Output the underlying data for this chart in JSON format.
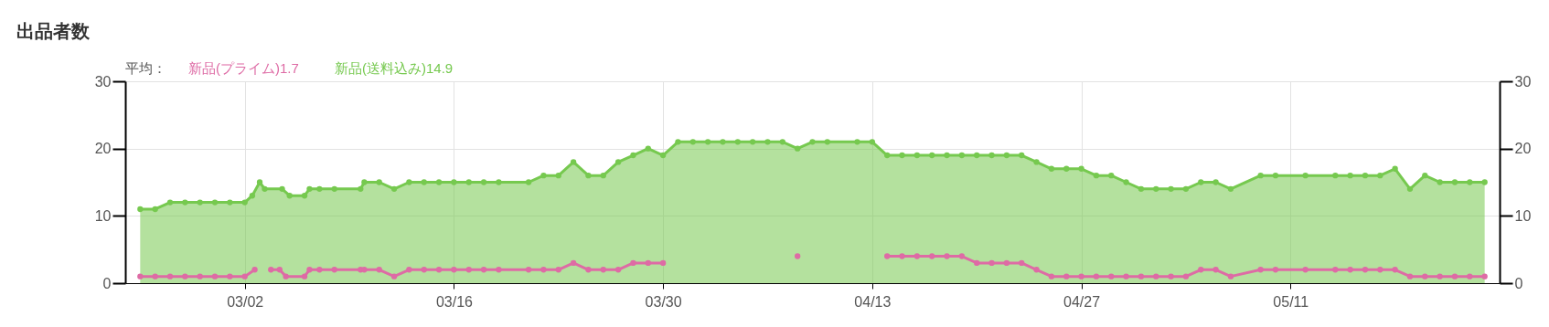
{
  "chart_data": {
    "type": "line",
    "title": "出品者数",
    "legend_title": "平均：",
    "legend": "top",
    "grid": true,
    "marker": "circle",
    "xlim": [
      "--02-22",
      "--05-25"
    ],
    "xticks": [
      {
        "value": "--03-02",
        "label": "03/02"
      },
      {
        "value": "--03-16",
        "label": "03/16"
      },
      {
        "value": "--03-30",
        "label": "03/30"
      },
      {
        "value": "--04-13",
        "label": "04/13"
      },
      {
        "value": "--04-27",
        "label": "04/27"
      },
      {
        "value": "--05-11",
        "label": "05/11"
      }
    ],
    "ylim": [
      0,
      30
    ],
    "yticks": [
      0,
      10,
      20,
      30
    ],
    "y2lim": [
      0,
      30
    ],
    "y2ticks": [
      0,
      10,
      20,
      30
    ],
    "series": [
      {
        "name": "新品(プライム)1.7",
        "type": "line",
        "color": "#de6ba5",
        "x": [
          "--02-23",
          "--02-24",
          "--02-25",
          "--02-26",
          "--02-27",
          "--02-28",
          "--03-01",
          "--03-02",
          "--03-02T16:00",
          "--03-03",
          "--03-03T18:00",
          "--03-04T08:00",
          "--03-04T18:00",
          "--03-06",
          "--03-06T08:00",
          "--03-07",
          "--03-08",
          "--03-09T18:00",
          "--03-10",
          "--03-11",
          "--03-12",
          "--03-13",
          "--03-14",
          "--03-15",
          "--03-16",
          "--03-17",
          "--03-18",
          "--03-19",
          "--03-21",
          "--03-22",
          "--03-23",
          "--03-24",
          "--03-25",
          "--03-26",
          "--03-27",
          "--03-28",
          "--03-29",
          "--03-30",
          "--04-03",
          "--04-08",
          "--04-11",
          "--04-14",
          "--04-15",
          "--04-16",
          "--04-17",
          "--04-18",
          "--04-19",
          "--04-20",
          "--04-21",
          "--04-22",
          "--04-23",
          "--04-24",
          "--04-25",
          "--04-26",
          "--04-27",
          "--04-28",
          "--04-29",
          "--04-30",
          "--05-01",
          "--05-02",
          "--05-03",
          "--05-04",
          "--05-05",
          "--05-06",
          "--05-07",
          "--05-09",
          "--05-10",
          "--05-12",
          "--05-14",
          "--05-15",
          "--05-16",
          "--05-17",
          "--05-18",
          "--05-19",
          "--05-20",
          "--05-21",
          "--05-22",
          "--05-23",
          "--05-24"
        ],
        "values": [
          1,
          1,
          1,
          1,
          1,
          1,
          1,
          1,
          2,
          null,
          2,
          2,
          1,
          1,
          2,
          2,
          2,
          2,
          2,
          2,
          1,
          2,
          2,
          2,
          2,
          2,
          2,
          2,
          2,
          2,
          2,
          3,
          2,
          2,
          2,
          3,
          3,
          3,
          null,
          4,
          null,
          4,
          4,
          4,
          4,
          4,
          4,
          3,
          3,
          3,
          3,
          2,
          1,
          1,
          1,
          1,
          1,
          1,
          1,
          1,
          1,
          1,
          2,
          2,
          1,
          2,
          2,
          2,
          2,
          2,
          2,
          2,
          2,
          1,
          1,
          1,
          1,
          1,
          1
        ]
      },
      {
        "name": "新品(送料込み)14.9",
        "type": "area",
        "color": "#76c94f",
        "x": [
          "--02-23",
          "--02-24",
          "--02-25",
          "--02-26",
          "--02-27",
          "--02-28",
          "--03-01",
          "--03-02",
          "--03-02T12:00",
          "--03-03",
          "--03-03T08:00",
          "--03-04T12:00",
          "--03-05",
          "--03-06",
          "--03-06T08:00",
          "--03-07",
          "--03-08",
          "--03-09T18:00",
          "--03-10",
          "--03-11",
          "--03-12",
          "--03-13",
          "--03-14",
          "--03-15",
          "--03-16",
          "--03-17",
          "--03-18",
          "--03-19",
          "--03-21",
          "--03-22",
          "--03-23",
          "--03-24",
          "--03-25",
          "--03-26",
          "--03-27",
          "--03-28",
          "--03-29",
          "--03-30",
          "--03-31",
          "--04-01",
          "--04-02",
          "--04-03",
          "--04-04",
          "--04-05",
          "--04-06",
          "--04-07",
          "--04-08",
          "--04-09",
          "--04-10",
          "--04-12",
          "--04-13",
          "--04-14",
          "--04-15",
          "--04-16",
          "--04-17",
          "--04-18",
          "--04-19",
          "--04-20",
          "--04-21",
          "--04-22",
          "--04-23",
          "--04-24",
          "--04-25",
          "--04-26",
          "--04-27",
          "--04-28",
          "--04-29",
          "--04-30",
          "--05-01",
          "--05-02",
          "--05-03",
          "--05-04",
          "--05-05",
          "--05-06",
          "--05-07",
          "--05-09",
          "--05-10",
          "--05-12",
          "--05-14",
          "--05-15",
          "--05-16",
          "--05-17",
          "--05-18",
          "--05-19",
          "--05-20",
          "--05-21",
          "--05-22",
          "--05-23",
          "--05-24"
        ],
        "values": [
          11,
          11,
          12,
          12,
          12,
          12,
          12,
          12,
          13,
          15,
          14,
          14,
          13,
          13,
          14,
          14,
          14,
          14,
          15,
          15,
          14,
          15,
          15,
          15,
          15,
          15,
          15,
          15,
          15,
          16,
          16,
          18,
          16,
          16,
          18,
          19,
          20,
          19,
          21,
          21,
          21,
          21,
          21,
          21,
          21,
          21,
          20,
          21,
          21,
          21,
          21,
          19,
          19,
          19,
          19,
          19,
          19,
          19,
          19,
          19,
          19,
          18,
          17,
          17,
          17,
          16,
          16,
          15,
          14,
          14,
          14,
          14,
          15,
          15,
          14,
          16,
          16,
          16,
          16,
          16,
          16,
          16,
          17,
          14,
          16,
          15,
          15,
          15,
          15
        ]
      }
    ]
  }
}
